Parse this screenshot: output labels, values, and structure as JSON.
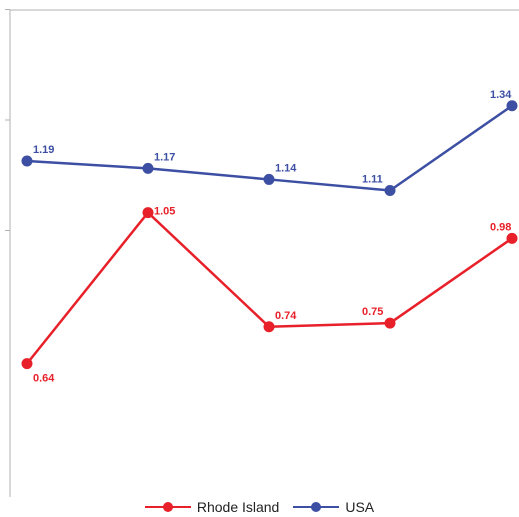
{
  "chart_data": {
    "type": "line",
    "title": "",
    "xlabel": "",
    "ylabel": "",
    "categories": [
      "",
      "",
      "",
      "",
      ""
    ],
    "ylim": [
      0.4,
      1.6
    ],
    "grid": false,
    "legend_position": "bottom",
    "series": [
      {
        "name": "Rhode Island",
        "color": "#e8202a",
        "values": [
          0.64,
          1.05,
          0.74,
          0.75,
          0.98
        ],
        "labels": [
          "0.64",
          "1.05",
          "0.74",
          "0.75",
          "0.98"
        ]
      },
      {
        "name": "USA",
        "color": "#3c4fa3",
        "values": [
          1.19,
          1.17,
          1.14,
          1.11,
          1.34
        ],
        "labels": [
          "1.19",
          "1.17",
          "1.14",
          "1.11",
          "1.34"
        ]
      }
    ]
  }
}
